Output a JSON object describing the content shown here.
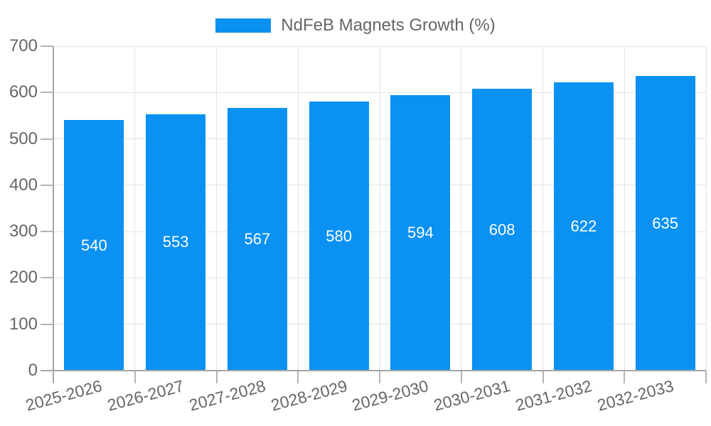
{
  "legend": {
    "label": "NdFeB Magnets Growth (%)"
  },
  "colors": {
    "bar": "#0a91f2",
    "axis": "#a6a6a6",
    "grid": "#e4e4e4",
    "tick": "#b4b4b4",
    "text": "#666666",
    "value_label": "#ffffff"
  },
  "chart_data": {
    "type": "bar",
    "title": "NdFeB Magnets Growth (%)",
    "categories": [
      "2025-2026",
      "2026-2027",
      "2027-2028",
      "2028-2029",
      "2029-2030",
      "2030-2031",
      "2031-2032",
      "2032-2033"
    ],
    "values": [
      540,
      553,
      567,
      580,
      594,
      608,
      622,
      635
    ],
    "xlabel": "",
    "ylabel": "",
    "ylim": [
      0,
      700
    ],
    "yticks": [
      0,
      100,
      200,
      300,
      400,
      500,
      600,
      700
    ],
    "grid": true,
    "legend_position": "top-center",
    "value_labels_position": "inside-center"
  }
}
